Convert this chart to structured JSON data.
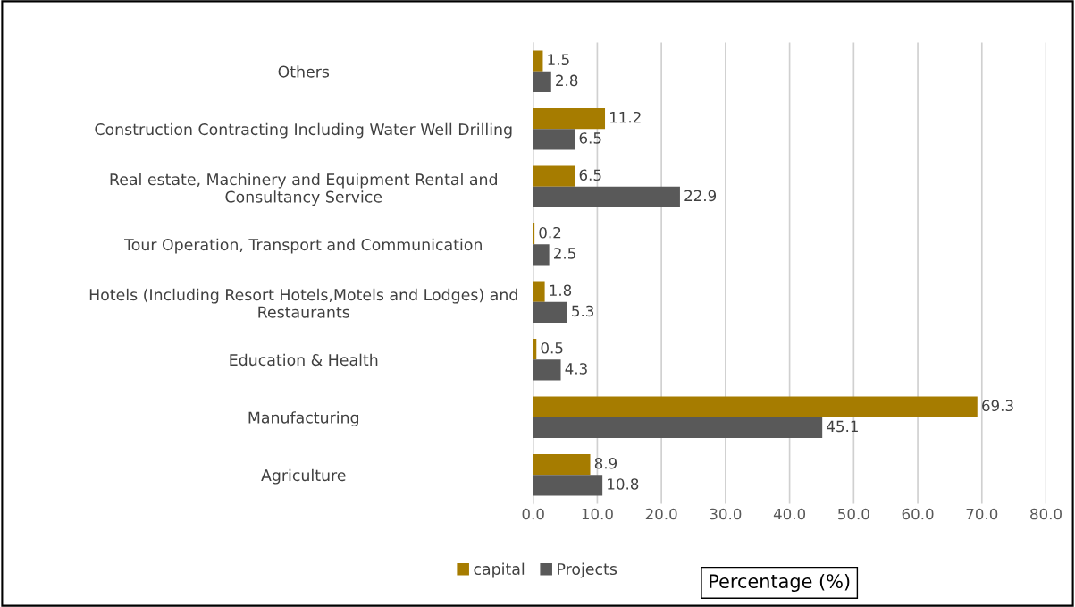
{
  "chart_data": {
    "type": "bar",
    "orientation": "horizontal",
    "categories": [
      "Others",
      "Construction Contracting Including Water Well Drilling",
      "Real estate, Machinery and Equipment Rental and\nConsultancy Service",
      "Tour Operation, Transport and Communication",
      "Hotels (Including Resort Hotels,Motels and Lodges) and\nRestaurants",
      "Education & Health",
      "Manufacturing",
      "Agriculture"
    ],
    "series": [
      {
        "name": "capital",
        "color": "#a67c00",
        "values": [
          1.5,
          11.2,
          6.5,
          0.2,
          1.8,
          0.5,
          69.3,
          8.9
        ]
      },
      {
        "name": "Projects",
        "color": "#595959",
        "values": [
          2.8,
          6.5,
          22.9,
          2.5,
          5.3,
          4.3,
          45.1,
          10.8
        ]
      }
    ],
    "xlim": [
      0,
      80
    ],
    "xticks": [
      {
        "value": 0,
        "label": "0.0"
      },
      {
        "value": 10,
        "label": "10.0"
      },
      {
        "value": 20,
        "label": "20.0"
      },
      {
        "value": 30,
        "label": "30.0"
      },
      {
        "value": 40,
        "label": "40.0"
      },
      {
        "value": 50,
        "label": "50.0"
      },
      {
        "value": 60,
        "label": "60.0"
      },
      {
        "value": 70,
        "label": "70.0"
      },
      {
        "value": 80,
        "label": "80.0"
      }
    ],
    "xlabel": "Percentage (%)",
    "grid": "x",
    "legend": "bottom",
    "data_labels": true
  }
}
